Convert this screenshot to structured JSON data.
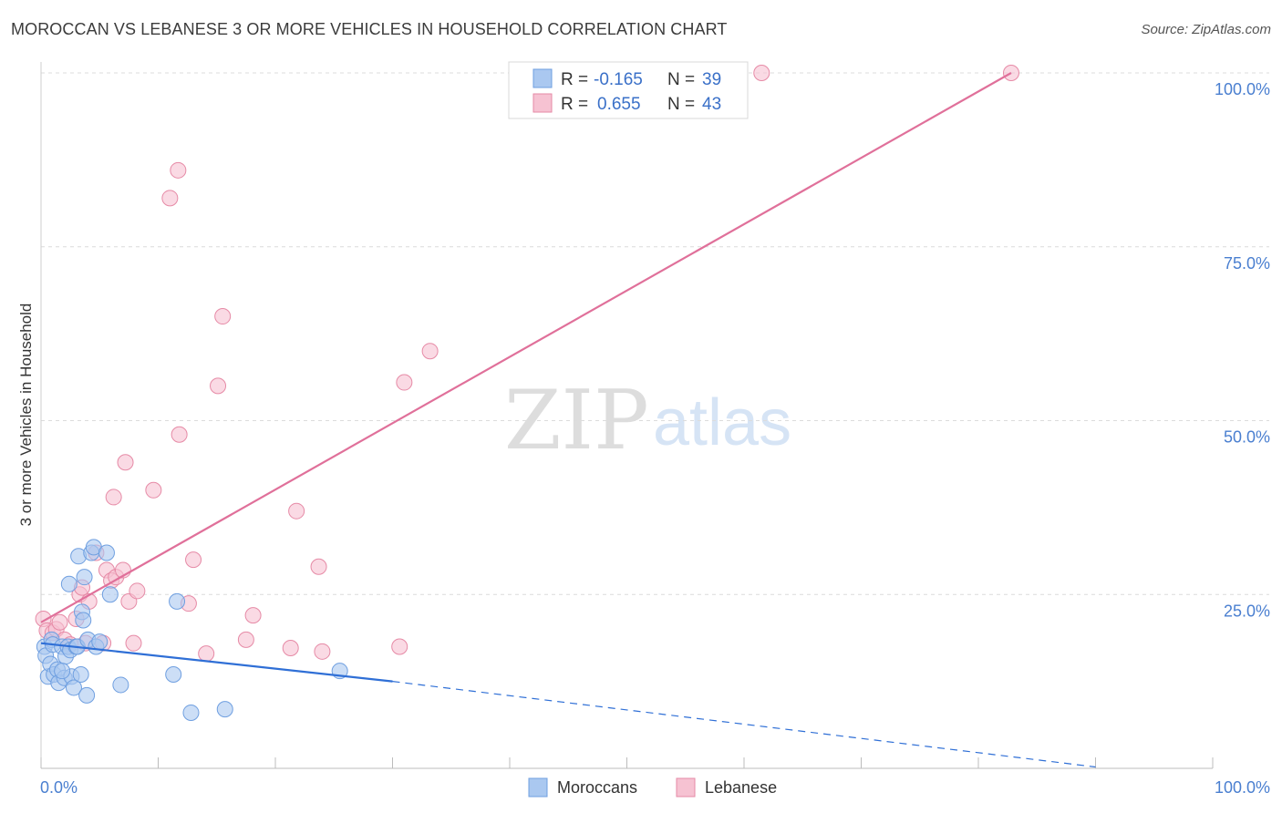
{
  "header": {
    "title": "MOROCCAN VS LEBANESE 3 OR MORE VEHICLES IN HOUSEHOLD CORRELATION CHART",
    "source": "Source: ZipAtlas.com"
  },
  "watermark": {
    "zip": "ZIP",
    "atlas": "atlas"
  },
  "legend": {
    "r_label": "R =",
    "n_label": "N =",
    "rows": [
      {
        "r": "-0.165",
        "n": "39"
      },
      {
        "r": "0.655",
        "n": "43"
      }
    ]
  },
  "chart_data": {
    "type": "scatter",
    "title": "MOROCCAN VS LEBANESE 3 OR MORE VEHICLES IN HOUSEHOLD CORRELATION CHART",
    "xlabel": "",
    "ylabel": "3 or more Vehicles in Household",
    "xlim": [
      0,
      100
    ],
    "ylim": [
      0,
      100
    ],
    "x_tick_labels": [
      "0.0%",
      "100.0%"
    ],
    "y_ticks": [
      25,
      50,
      75,
      100
    ],
    "y_tick_labels": [
      "25.0%",
      "50.0%",
      "75.0%",
      "100.0%"
    ],
    "grid": true,
    "series": [
      {
        "name": "Moroccans",
        "color": "#6f9fe0",
        "fill": "#aac8f0",
        "line_color": "#2f6fd6",
        "points": [
          [
            0.3,
            17.5
          ],
          [
            0.4,
            16.2
          ],
          [
            0.6,
            13.2
          ],
          [
            0.8,
            15
          ],
          [
            0.9,
            18.5
          ],
          [
            1.0,
            17.8
          ],
          [
            1.1,
            13.5
          ],
          [
            1.4,
            14.2
          ],
          [
            1.5,
            12.3
          ],
          [
            1.8,
            17.5
          ],
          [
            2.0,
            13.0
          ],
          [
            2.1,
            16.1
          ],
          [
            2.3,
            17.5
          ],
          [
            2.4,
            26.5
          ],
          [
            2.5,
            17.0
          ],
          [
            2.6,
            13.2
          ],
          [
            2.8,
            11.6
          ],
          [
            3.0,
            17.5
          ],
          [
            3.1,
            17.5
          ],
          [
            3.2,
            30.5
          ],
          [
            3.4,
            13.5
          ],
          [
            3.5,
            22.5
          ],
          [
            3.6,
            21.3
          ],
          [
            3.7,
            27.5
          ],
          [
            3.9,
            10.5
          ],
          [
            4.0,
            18.5
          ],
          [
            4.3,
            31.0
          ],
          [
            4.5,
            31.8
          ],
          [
            4.7,
            17.5
          ],
          [
            5.0,
            18.2
          ],
          [
            5.6,
            31.0
          ],
          [
            5.9,
            25.0
          ],
          [
            6.8,
            12.0
          ],
          [
            11.3,
            13.5
          ],
          [
            11.6,
            24.0
          ],
          [
            12.8,
            8.0
          ],
          [
            15.7,
            8.5
          ],
          [
            25.5,
            14.0
          ],
          [
            1.8,
            14.0
          ]
        ],
        "trend": {
          "x": [
            0,
            30
          ],
          "y": [
            18.0,
            12.5
          ],
          "dashed_to": [
            90,
            0.2
          ]
        }
      },
      {
        "name": "Lebanese",
        "color": "#e68aa6",
        "fill": "#f6c2d2",
        "line_color": "#e0709a",
        "points": [
          [
            0.2,
            21.5
          ],
          [
            0.5,
            19.8
          ],
          [
            1.0,
            19.5
          ],
          [
            1.3,
            20.0
          ],
          [
            1.6,
            21.0
          ],
          [
            2.0,
            18.5
          ],
          [
            2.5,
            17.8
          ],
          [
            3.0,
            21.5
          ],
          [
            3.3,
            25.0
          ],
          [
            3.5,
            26.0
          ],
          [
            3.8,
            18.0
          ],
          [
            4.1,
            24.0
          ],
          [
            4.7,
            31.0
          ],
          [
            5.3,
            18.0
          ],
          [
            5.6,
            28.5
          ],
          [
            6.0,
            27.0
          ],
          [
            6.2,
            39.0
          ],
          [
            6.4,
            27.5
          ],
          [
            7.0,
            28.5
          ],
          [
            7.2,
            44.0
          ],
          [
            7.5,
            24.0
          ],
          [
            7.9,
            18.0
          ],
          [
            8.2,
            25.5
          ],
          [
            9.6,
            40.0
          ],
          [
            11.0,
            82.0
          ],
          [
            11.7,
            86.0
          ],
          [
            11.8,
            48.0
          ],
          [
            12.6,
            23.7
          ],
          [
            13.0,
            30.0
          ],
          [
            14.1,
            16.5
          ],
          [
            15.1,
            55.0
          ],
          [
            15.5,
            65.0
          ],
          [
            17.5,
            18.5
          ],
          [
            18.1,
            22.0
          ],
          [
            21.3,
            17.3
          ],
          [
            21.8,
            37.0
          ],
          [
            23.7,
            29.0
          ],
          [
            24.0,
            16.8
          ],
          [
            30.6,
            17.5
          ],
          [
            31.0,
            55.5
          ],
          [
            33.2,
            60.0
          ],
          [
            61.5,
            100.0
          ],
          [
            82.8,
            100.0
          ]
        ],
        "trend": {
          "x": [
            0,
            82.8
          ],
          "y": [
            21.0,
            100.0
          ]
        }
      }
    ]
  }
}
